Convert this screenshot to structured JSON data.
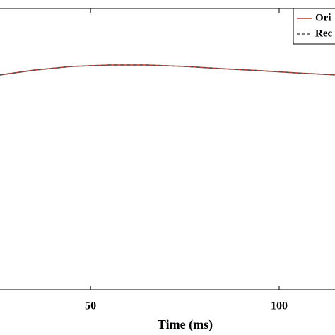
{
  "chart_data": {
    "type": "line",
    "xlabel": "Time (ms)",
    "x": [
      26,
      35,
      45,
      55,
      65,
      75,
      85,
      95,
      105,
      115
    ],
    "series": [
      {
        "name": "Ori",
        "color": "#c0392b",
        "dash": false,
        "values": [
          0.764,
          0.781,
          0.794,
          0.799,
          0.799,
          0.794,
          0.786,
          0.779,
          0.771,
          0.764
        ]
      },
      {
        "name": "Rec",
        "color": "#555555",
        "dash": true,
        "values": [
          0.764,
          0.781,
          0.794,
          0.799,
          0.799,
          0.794,
          0.786,
          0.779,
          0.771,
          0.764
        ]
      }
    ],
    "xlim": [
      26,
      114.8
    ],
    "xticks": [
      50,
      100
    ],
    "ylim": [
      0,
      1
    ],
    "legend": "upper right"
  }
}
